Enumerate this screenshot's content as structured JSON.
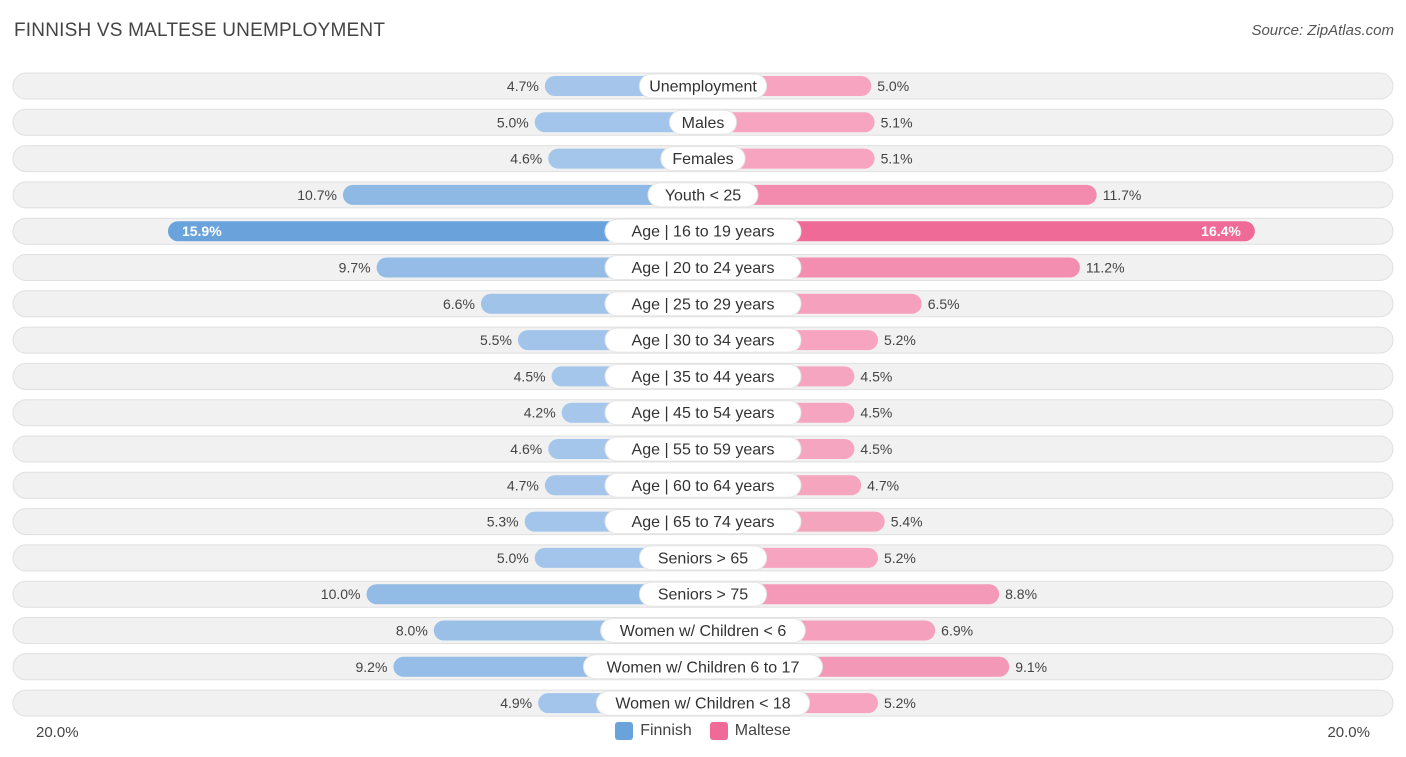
{
  "title": "FINNISH VS MALTESE UNEMPLOYMENT",
  "source": "Source: ZipAtlas.com",
  "colors": {
    "finnish_strong": "#6aa3dc",
    "finnish_light": "#a9c8ec",
    "maltese_strong": "#f06a98",
    "maltese_light": "#f6a9c2",
    "row_bg": "#f1f1f1",
    "row_border": "#e0e0e0"
  },
  "legend": {
    "finnish": "Finnish",
    "maltese": "Maltese"
  },
  "axis": {
    "left_label": "20.0%",
    "right_label": "20.0%"
  },
  "chart_data": {
    "type": "bar",
    "orientation": "diverging-horizontal",
    "title": "FINNISH VS MALTESE UNEMPLOYMENT",
    "xlim": [
      0,
      20.0
    ],
    "categories": [
      "Unemployment",
      "Males",
      "Females",
      "Youth < 25",
      "Age | 16 to 19 years",
      "Age | 20 to 24 years",
      "Age | 25 to 29 years",
      "Age | 30 to 34 years",
      "Age | 35 to 44 years",
      "Age | 45 to 54 years",
      "Age | 55 to 59 years",
      "Age | 60 to 64 years",
      "Age | 65 to 74 years",
      "Seniors > 65",
      "Seniors > 75",
      "Women w/ Children < 6",
      "Women w/ Children 6 to 17",
      "Women w/ Children < 18"
    ],
    "series": [
      {
        "name": "Finnish",
        "values": [
          4.7,
          5.0,
          4.6,
          10.7,
          15.9,
          9.7,
          6.6,
          5.5,
          4.5,
          4.2,
          4.6,
          4.7,
          5.3,
          5.0,
          10.0,
          8.0,
          9.2,
          4.9
        ]
      },
      {
        "name": "Maltese",
        "values": [
          5.0,
          5.1,
          5.1,
          11.7,
          16.4,
          11.2,
          6.5,
          5.2,
          4.5,
          4.5,
          4.5,
          4.7,
          5.4,
          5.2,
          8.8,
          6.9,
          9.1,
          5.2
        ]
      }
    ]
  }
}
